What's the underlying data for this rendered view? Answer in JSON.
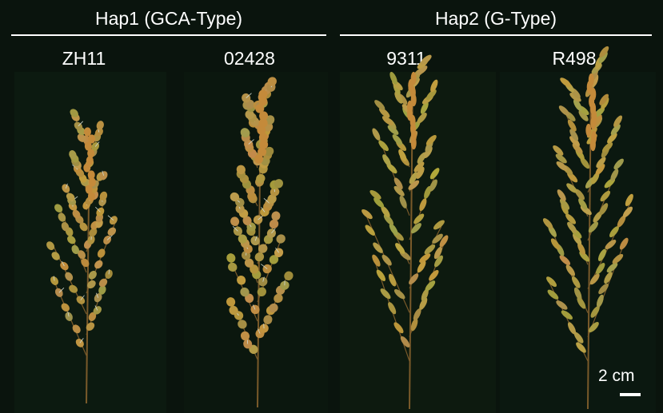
{
  "groups": [
    {
      "title": "Hap1 (GCA-Type)",
      "varieties": [
        "ZH11",
        "02428"
      ]
    },
    {
      "title": "Hap2 (G-Type)",
      "varieties": [
        "9311",
        "R498"
      ]
    }
  ],
  "scale_bar": {
    "label": "2 cm"
  },
  "colors": {
    "background": "#0a140d",
    "grain": "#c48a3a",
    "stem": "#7a5a2a"
  }
}
